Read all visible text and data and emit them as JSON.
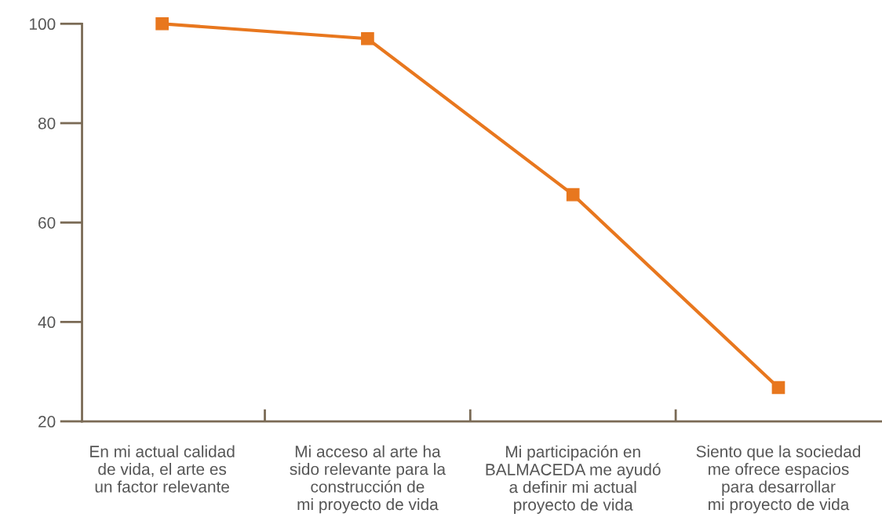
{
  "chart_data": {
    "type": "line",
    "categories": [
      "En mi actual calidad\nde vida, el arte es\nun factor relevante",
      "Mi acceso al arte ha\nsido relevante para la\nconstrucción de\nmi proyecto de vida",
      "Mi participación en\nBALMACEDA me ayudó\na definir mi actual\nproyecto de vida",
      "Siento que la sociedad\nme ofrece espacios\npara desarrollar\nmi proyecto de vida"
    ],
    "series": [
      {
        "color": "#e8771e",
        "values": [
          100,
          97,
          65.6,
          26.8
        ]
      }
    ],
    "ylim": [
      20,
      100
    ],
    "yticks": [
      20,
      40,
      60,
      80,
      100
    ],
    "grid": false,
    "legend": false,
    "marker": "square",
    "line_style": "solid"
  }
}
